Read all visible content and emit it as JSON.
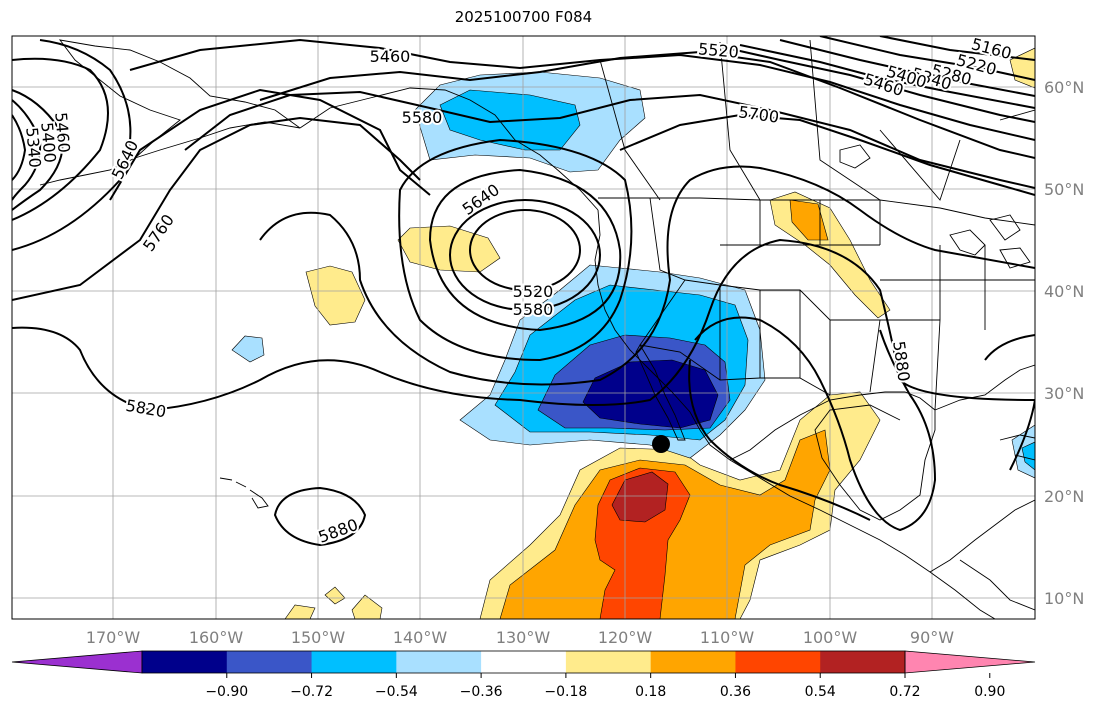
{
  "title": "2025100700 F084",
  "lat_labels": [
    "60°N",
    "50°N",
    "40°N",
    "30°N",
    "20°N",
    "10°N"
  ],
  "lon_labels": [
    "170°W",
    "160°W",
    "150°W",
    "140°W",
    "130°W",
    "120°W",
    "110°W",
    "100°W",
    "90°W"
  ],
  "contour_labels": [
    "5460",
    "5520",
    "5160",
    "5220",
    "5280",
    "5340",
    "5400",
    "5460",
    "5580",
    "5700",
    "5640",
    "5760",
    "5640",
    "5460",
    "5400",
    "5340",
    "5520",
    "5580",
    "5880",
    "5820",
    "5880"
  ],
  "colorbar": {
    "ticks": [
      "−0.90",
      "−0.72",
      "−0.54",
      "−0.36",
      "−0.18",
      "0.18",
      "0.36",
      "0.54",
      "0.72",
      "0.90"
    ],
    "colors": [
      "#9b30d0",
      "#00008b",
      "#3a56c8",
      "#00bfff",
      "#a9e0ff",
      "#ffffff",
      "#ffeb8c",
      "#ffa500",
      "#ff4500",
      "#b22222",
      "#ff85b0"
    ]
  },
  "marker": "black-dot"
}
